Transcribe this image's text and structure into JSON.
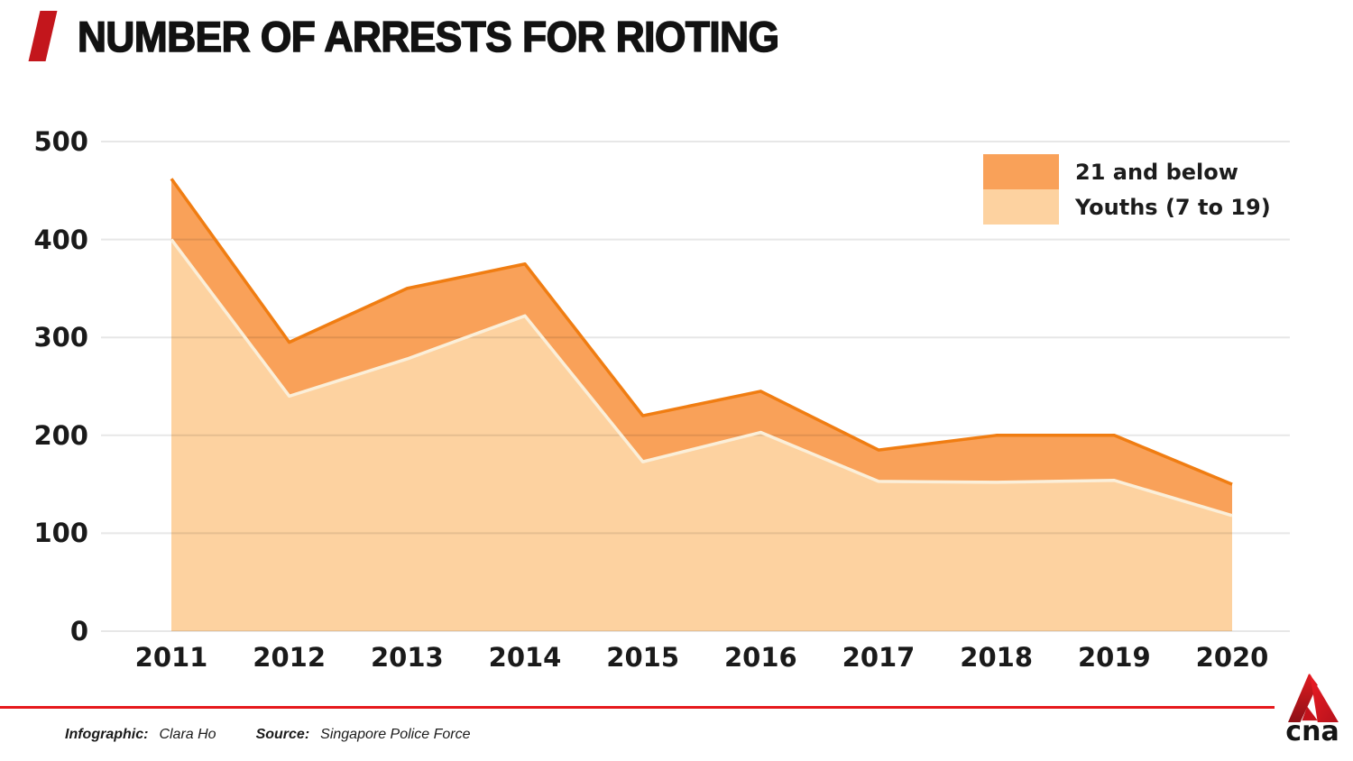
{
  "header": {
    "title": "NUMBER OF ARRESTS FOR RIOTING"
  },
  "chart_data": {
    "type": "area",
    "title": "NUMBER OF ARRESTS FOR RIOTING",
    "categories": [
      "2011",
      "2012",
      "2013",
      "2014",
      "2015",
      "2016",
      "2017",
      "2018",
      "2019",
      "2020"
    ],
    "series": [
      {
        "name": "21 and below",
        "values": [
          462,
          295,
          350,
          375,
          220,
          245,
          185,
          200,
          200,
          150
        ],
        "fill": "#F9A159",
        "stroke": "#F07D12"
      },
      {
        "name": "Youths (7 to 19)",
        "values": [
          400,
          240,
          278,
          322,
          173,
          203,
          153,
          152,
          154,
          118
        ],
        "fill": "#FDD2A0",
        "stroke": "#FBEFD9"
      }
    ],
    "ylim": [
      0,
      500
    ],
    "yticks": [
      0,
      100,
      200,
      300,
      400,
      500
    ],
    "grid": "horizontal-only",
    "gridline_color": "rgba(0,0,0,0.095)",
    "legend_position": "top-right",
    "xlabel": "",
    "ylabel": ""
  },
  "footer": {
    "infographic_label": "Infographic:",
    "infographic_value": "Clara Ho",
    "source_label": "Source:",
    "source_value": "Singapore Police Force",
    "rule_color": "#E6191D"
  },
  "branding": {
    "slash_color": "#C3161C",
    "logo_text": "cna",
    "logo_red_bright": "#E01B20",
    "logo_red_dark": "#8E1016"
  }
}
